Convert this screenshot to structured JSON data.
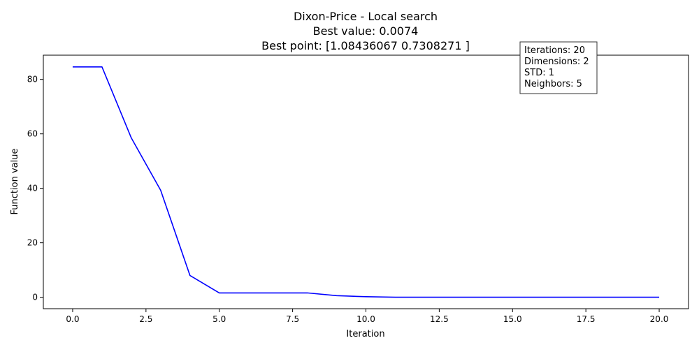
{
  "chart_data": {
    "type": "line",
    "title_lines": [
      "Dixon-Price - Local search",
      "Best value: 0.0074",
      "Best point: [1.08436067 0.7308271 ]"
    ],
    "xlabel": "Iteration",
    "ylabel": "Function value",
    "xlim": [
      -1.0,
      21.0
    ],
    "ylim": [
      -4.2,
      88.9
    ],
    "x_ticks": [
      0.0,
      2.5,
      5.0,
      7.5,
      10.0,
      12.5,
      15.0,
      17.5,
      20.0
    ],
    "x_tick_labels": [
      "0.0",
      "2.5",
      "5.0",
      "7.5",
      "10.0",
      "12.5",
      "15.0",
      "17.5",
      "20.0"
    ],
    "y_ticks": [
      0,
      20,
      40,
      60,
      80
    ],
    "y_tick_labels": [
      "0",
      "20",
      "40",
      "60",
      "80"
    ],
    "grid": false,
    "series": [
      {
        "color": "#0000ff",
        "x": [
          0,
          1,
          2,
          3,
          4,
          5,
          6,
          7,
          8,
          9,
          10,
          11,
          12,
          13,
          14,
          15,
          16,
          17,
          18,
          19,
          20
        ],
        "y": [
          84.6,
          84.6,
          58.5,
          39.3,
          8.0,
          1.6,
          1.6,
          1.6,
          1.6,
          0.6,
          0.2,
          0.0074,
          0.0074,
          0.0074,
          0.0074,
          0.0074,
          0.0074,
          0.0074,
          0.0074,
          0.0074,
          0.0074
        ]
      }
    ],
    "info_box": [
      "Iterations: 20",
      "Dimensions: 2",
      "STD: 1",
      "Neighbors: 5"
    ]
  }
}
